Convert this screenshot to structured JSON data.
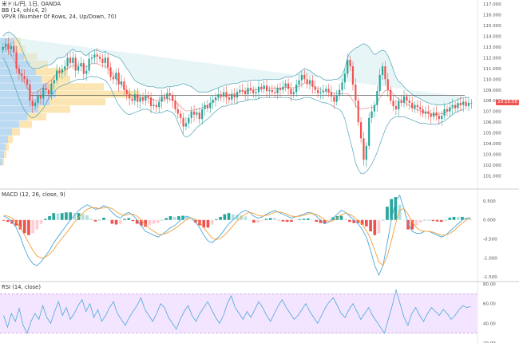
{
  "legends": {
    "main": [
      "米ドル/円, 1日, OANDA",
      "BB (14, ohlc4, 2)",
      "VPVR (Number Of Rows, 24, Up/Down, 70)"
    ],
    "macd": "MACD (12, 26, close, 9)",
    "rsi": "RSI (14, close)"
  },
  "price_tag": "20:15:58",
  "colors": {
    "up": "#26a69a",
    "down": "#ef5350",
    "bb_line": "#4fa3b8",
    "bb_fill": "#d6ecf1",
    "bb_basis": "#e57373",
    "vp_up": "#bcd9f2",
    "vp_down": "#fbe6b3",
    "hline": "#555555",
    "macd_line": "#4aa8d8",
    "signal_line": "#f29f3d",
    "rsi_line": "#4aa8d8",
    "rsi_band": "#f3e5ff",
    "rsi_band_edge": "#c38fe0"
  },
  "chart_data": [
    {
      "type": "line",
      "name": "main",
      "title": "米ドル/円, 1日, OANDA",
      "ylim": [
        100.0,
        117.0
      ],
      "y_ticks": [
        "117.000",
        "116.000",
        "115.000",
        "114.000",
        "113.000",
        "112.000",
        "111.000",
        "110.000",
        "109.000",
        "108.000",
        "107.000",
        "106.000",
        "105.000",
        "104.000",
        "103.000",
        "102.000",
        "101.000"
      ],
      "horizontal_line": 108.5,
      "last_price": 107.8,
      "closes": [
        113.0,
        113.3,
        112.8,
        113.1,
        112.5,
        111.0,
        110.5,
        110.3,
        110.0,
        109.5,
        108.0,
        107.5,
        107.8,
        108.5,
        108.2,
        109.2,
        109.0,
        108.6,
        109.6,
        109.9,
        110.8,
        110.6,
        110.9,
        111.2,
        112.0,
        111.5,
        112.0,
        110.8,
        111.2,
        111.5,
        110.5,
        110.8,
        111.9,
        112.0,
        112.3,
        112.1,
        111.9,
        111.5,
        112.0,
        111.1,
        110.2,
        110.0,
        110.6,
        109.5,
        109.8,
        109.0,
        108.6,
        108.2,
        108.0,
        108.6,
        107.9,
        108.3,
        108.0,
        108.5,
        108.3,
        107.5,
        107.6,
        107.4,
        107.9,
        108.4,
        108.2,
        108.7,
        108.5,
        108.0,
        107.2,
        106.8,
        106.4,
        105.6,
        105.9,
        106.4,
        107.0,
        106.7,
        106.9,
        106.3,
        107.2,
        107.6,
        107.3,
        107.8,
        108.1,
        108.3,
        108.6,
        108.4,
        108.8,
        108.3,
        108.1,
        108.6,
        108.3,
        108.8,
        109.0,
        108.9,
        108.6,
        109.2,
        109.0,
        108.7,
        108.8,
        109.3,
        109.1,
        109.4,
        108.9,
        109.0,
        108.8,
        108.7,
        109.2,
        109.0,
        109.3,
        109.6,
        109.1,
        108.6,
        108.8,
        109.5,
        109.9,
        110.4,
        110.0,
        109.6,
        109.9,
        109.3,
        109.0,
        108.7,
        108.8,
        108.9,
        109.1,
        108.8,
        108.4,
        107.9,
        108.5,
        109.0,
        109.7,
        110.5,
        111.8,
        111.2,
        109.5,
        108.0,
        106.0,
        104.5,
        102.5,
        103.8,
        106.4,
        107.0,
        107.6,
        108.9,
        110.4,
        111.2,
        110.0,
        109.0,
        108.0,
        107.5,
        107.2,
        108.0,
        107.8,
        108.4,
        108.0,
        107.8,
        107.3,
        107.6,
        107.4,
        107.2,
        106.8,
        107.0,
        106.8,
        106.5,
        106.9,
        106.6,
        106.3,
        106.6,
        107.2,
        107.0,
        107.4,
        107.6,
        107.3,
        107.8,
        107.6,
        107.9,
        107.5,
        107.8,
        107.8
      ],
      "bb_upper": [
        114.0,
        114.3,
        114.4,
        114.3,
        114.1,
        113.8,
        113.4,
        112.8,
        112.2,
        111.6,
        111.2,
        111.0,
        111.0,
        111.0,
        111.1,
        111.2,
        111.3,
        111.3,
        111.4,
        111.6,
        111.9,
        112.0,
        112.0,
        112.1,
        112.4,
        112.6,
        112.8,
        112.6,
        112.6,
        112.6,
        112.3,
        112.2,
        112.4,
        112.6,
        112.7,
        112.7,
        112.6,
        112.5,
        112.6,
        112.4,
        112.3,
        112.2,
        112.1,
        112.0,
        111.8,
        111.4,
        111.0,
        110.7,
        110.2,
        109.9,
        109.7,
        109.6,
        109.5,
        109.4,
        109.3,
        109.3,
        109.3,
        109.2,
        109.2,
        109.2,
        109.2,
        109.3,
        109.3,
        109.3,
        109.4,
        109.4,
        109.5,
        109.6,
        109.5,
        109.4,
        109.3,
        109.1,
        108.9,
        108.8,
        108.8,
        108.8,
        108.8,
        108.9,
        109.0,
        109.1,
        109.2,
        109.3,
        109.4,
        109.5,
        109.5,
        109.6,
        109.6,
        109.6,
        109.7,
        109.8,
        109.8,
        109.8,
        109.9,
        109.9,
        109.9,
        109.9,
        109.9,
        110.0,
        110.0,
        110.0,
        110.0,
        110.0,
        110.0,
        110.0,
        110.1,
        110.2,
        110.2,
        110.2,
        110.3,
        110.4,
        110.6,
        110.8,
        111.0,
        110.9,
        110.8,
        110.6,
        110.4,
        110.3,
        110.2,
        110.0,
        109.9,
        109.9,
        109.9,
        110.0,
        110.0,
        110.1,
        110.4,
        111.0,
        112.0,
        112.5,
        112.7,
        112.9,
        113.0,
        113.2,
        113.3,
        113.2,
        113.0,
        112.6,
        112.3,
        112.4,
        112.6,
        112.7,
        112.6,
        112.2,
        111.6,
        110.9,
        110.2,
        109.8,
        109.6,
        109.3,
        109.0,
        108.8,
        108.6,
        108.4,
        108.3,
        108.2,
        108.0,
        107.9,
        107.8,
        107.7,
        107.7,
        107.6,
        107.6,
        107.6,
        107.6,
        107.7,
        107.8,
        107.9,
        108.0,
        108.1,
        108.2,
        108.3,
        108.3,
        108.3
      ],
      "bb_lower": [
        112.0,
        111.6,
        111.0,
        110.3,
        109.6,
        108.9,
        108.2,
        107.6,
        107.1,
        106.8,
        106.5,
        106.4,
        106.5,
        106.7,
        107.0,
        107.3,
        107.7,
        108.2,
        108.5,
        108.8,
        109.1,
        109.3,
        109.4,
        109.5,
        109.6,
        109.7,
        109.8,
        109.9,
        110.0,
        110.0,
        110.0,
        110.1,
        110.2,
        110.3,
        110.2,
        110.2,
        110.1,
        110.0,
        109.9,
        109.6,
        109.2,
        108.6,
        108.1,
        107.6,
        107.3,
        107.0,
        106.8,
        106.7,
        106.8,
        106.9,
        107.0,
        107.1,
        107.2,
        107.2,
        107.2,
        107.0,
        106.9,
        106.8,
        106.9,
        106.9,
        107.0,
        107.1,
        107.0,
        106.9,
        106.6,
        106.0,
        105.4,
        104.8,
        104.6,
        104.7,
        104.9,
        105.2,
        105.5,
        105.7,
        105.9,
        106.1,
        106.3,
        106.5,
        106.8,
        107.0,
        107.2,
        107.4,
        107.5,
        107.5,
        107.6,
        107.7,
        107.7,
        107.8,
        107.9,
        107.9,
        108.0,
        108.1,
        108.1,
        108.1,
        108.1,
        108.2,
        108.3,
        108.3,
        108.3,
        108.3,
        108.3,
        108.3,
        108.3,
        108.3,
        108.3,
        108.3,
        108.3,
        108.2,
        108.1,
        108.1,
        108.1,
        108.2,
        108.3,
        108.3,
        108.3,
        108.2,
        108.1,
        108.0,
        107.9,
        107.8,
        107.8,
        107.7,
        107.6,
        107.4,
        107.3,
        107.2,
        106.9,
        106.3,
        105.3,
        104.3,
        103.3,
        102.2,
        101.6,
        101.2,
        101.2,
        101.4,
        101.7,
        102.1,
        102.6,
        103.2,
        103.9,
        104.6,
        105.3,
        105.8,
        106.2,
        106.4,
        106.5,
        106.5,
        106.5,
        106.5,
        106.4,
        106.3,
        106.2,
        106.1,
        106.0,
        105.9,
        105.9,
        105.9,
        105.8,
        105.8,
        105.8,
        105.8,
        105.9,
        106.0,
        106.1,
        106.3,
        106.5,
        106.7,
        106.9,
        107.0,
        107.1,
        107.2
      ],
      "volume_profile": [
        {
          "price": 113.5,
          "up": 18,
          "down": 8
        },
        {
          "price": 112.8,
          "up": 22,
          "down": 10
        },
        {
          "price": 112.1,
          "up": 30,
          "down": 16
        },
        {
          "price": 111.4,
          "up": 38,
          "down": 22
        },
        {
          "price": 110.7,
          "up": 45,
          "down": 40
        },
        {
          "price": 110.0,
          "up": 52,
          "down": 36
        },
        {
          "price": 109.3,
          "up": 60,
          "down": 70
        },
        {
          "price": 108.6,
          "up": 70,
          "down": 105
        },
        {
          "price": 107.9,
          "up": 62,
          "down": 70
        },
        {
          "price": 107.2,
          "up": 48,
          "down": 40
        },
        {
          "price": 106.5,
          "up": 34,
          "down": 24
        },
        {
          "price": 105.8,
          "up": 24,
          "down": 16
        },
        {
          "price": 105.1,
          "up": 15,
          "down": 10
        },
        {
          "price": 104.4,
          "up": 10,
          "down": 6
        },
        {
          "price": 103.7,
          "up": 7,
          "down": 4
        },
        {
          "price": 103.0,
          "up": 5,
          "down": 3
        },
        {
          "price": 102.3,
          "up": 3,
          "down": 2
        }
      ]
    },
    {
      "type": "line",
      "name": "macd",
      "title": "MACD (12, 26, close, 9)",
      "ylim": [
        -1.6,
        0.75
      ],
      "y_ticks": [
        "0.500",
        "0.000",
        "-0.500",
        "-1.000",
        "-1.500"
      ],
      "macd": [
        0.1,
        0.05,
        -0.05,
        -0.2,
        -0.45,
        -0.75,
        -1.0,
        -1.15,
        -1.2,
        -1.1,
        -0.95,
        -0.8,
        -0.6,
        -0.45,
        -0.3,
        -0.15,
        0.0,
        0.12,
        0.25,
        0.33,
        0.4,
        0.35,
        0.28,
        0.3,
        0.38,
        0.33,
        0.2,
        0.1,
        0.05,
        0.15,
        0.2,
        0.12,
        0.0,
        -0.15,
        -0.3,
        -0.35,
        -0.4,
        -0.45,
        -0.38,
        -0.3,
        -0.2,
        -0.15,
        -0.05,
        0.05,
        0.1,
        0.05,
        -0.05,
        -0.2,
        -0.4,
        -0.55,
        -0.6,
        -0.5,
        -0.4,
        -0.25,
        -0.1,
        0.0,
        0.1,
        0.2,
        0.25,
        0.2,
        0.1,
        0.05,
        0.08,
        0.15,
        0.2,
        0.25,
        0.2,
        0.15,
        0.1,
        0.05,
        0.08,
        0.12,
        0.15,
        0.2,
        0.18,
        0.1,
        0.0,
        -0.1,
        -0.05,
        0.05,
        0.15,
        0.25,
        0.2,
        0.1,
        0.0,
        -0.1,
        -0.25,
        -0.45,
        -0.8,
        -1.2,
        -1.45,
        -1.2,
        -0.6,
        0.0,
        0.5,
        0.65,
        0.3,
        -0.1,
        -0.3,
        -0.35,
        -0.35,
        -0.3,
        -0.3,
        -0.35,
        -0.4,
        -0.45,
        -0.4,
        -0.3,
        -0.2,
        -0.1,
        0.0,
        0.05,
        0.06
      ],
      "signal": [
        0.12,
        0.1,
        0.05,
        -0.05,
        -0.2,
        -0.4,
        -0.6,
        -0.8,
        -0.95,
        -1.0,
        -0.98,
        -0.9,
        -0.78,
        -0.62,
        -0.48,
        -0.35,
        -0.2,
        -0.06,
        0.07,
        0.18,
        0.28,
        0.32,
        0.32,
        0.3,
        0.32,
        0.33,
        0.3,
        0.22,
        0.15,
        0.12,
        0.15,
        0.15,
        0.1,
        0.0,
        -0.12,
        -0.22,
        -0.3,
        -0.37,
        -0.38,
        -0.35,
        -0.3,
        -0.23,
        -0.15,
        -0.06,
        0.02,
        0.05,
        0.02,
        -0.06,
        -0.2,
        -0.35,
        -0.48,
        -0.52,
        -0.48,
        -0.4,
        -0.28,
        -0.15,
        -0.03,
        0.08,
        0.16,
        0.2,
        0.17,
        0.12,
        0.1,
        0.12,
        0.15,
        0.2,
        0.21,
        0.19,
        0.15,
        0.1,
        0.09,
        0.1,
        0.12,
        0.16,
        0.17,
        0.15,
        0.08,
        0.0,
        -0.04,
        -0.02,
        0.05,
        0.14,
        0.18,
        0.15,
        0.08,
        -0.02,
        -0.12,
        -0.28,
        -0.5,
        -0.8,
        -1.1,
        -1.2,
        -0.95,
        -0.55,
        -0.1,
        0.25,
        0.3,
        0.15,
        -0.05,
        -0.2,
        -0.28,
        -0.3,
        -0.3,
        -0.32,
        -0.36,
        -0.4,
        -0.4,
        -0.36,
        -0.28,
        -0.18,
        -0.08,
        0.0,
        0.04
      ]
    },
    {
      "type": "line",
      "name": "rsi",
      "title": "RSI (14, close)",
      "ylim": [
        20,
        80
      ],
      "y_ticks": [
        "80.00",
        "60.00",
        "40.00",
        "20.00"
      ],
      "band": [
        30,
        70
      ],
      "values": [
        48,
        36,
        50,
        42,
        55,
        38,
        30,
        42,
        50,
        44,
        58,
        46,
        40,
        52,
        62,
        48,
        56,
        44,
        50,
        58,
        64,
        52,
        60,
        46,
        54,
        42,
        48,
        56,
        62,
        50,
        44,
        38,
        46,
        52,
        58,
        66,
        54,
        48,
        42,
        50,
        60,
        56,
        46,
        40,
        34,
        44,
        52,
        58,
        48,
        42,
        50,
        56,
        62,
        54,
        46,
        40,
        48,
        60,
        68,
        56,
        50,
        44,
        52,
        46,
        54,
        62,
        56,
        48,
        42,
        50,
        58,
        64,
        56,
        50,
        44,
        48,
        54,
        60,
        52,
        46,
        40,
        48,
        56,
        62,
        66,
        58,
        50,
        46,
        54,
        60,
        52,
        44,
        50,
        56,
        48,
        42,
        36,
        30,
        44,
        58,
        74,
        60,
        46,
        38,
        50,
        56,
        48,
        42,
        50,
        56,
        52,
        48,
        54,
        50,
        44,
        48,
        54,
        58,
        56,
        57
      ]
    }
  ]
}
